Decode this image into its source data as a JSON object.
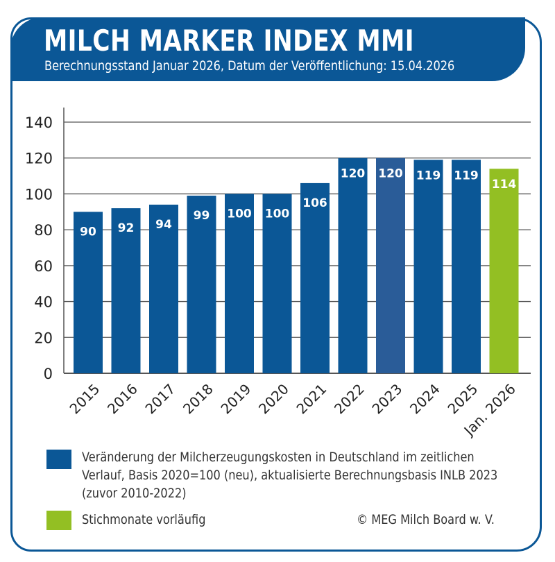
{
  "header": {
    "title": "MILCH MARKER INDEX MMI",
    "subtitle": "Berechnungsstand Januar 2026, Datum der Veröffentlichung: 15.04.2026"
  },
  "chart_data": {
    "type": "bar",
    "title": "MILCH MARKER INDEX MMI",
    "categories": [
      "2015",
      "2016",
      "2017",
      "2018",
      "2019",
      "2020",
      "2021",
      "2022",
      "2023",
      "2024",
      "2025",
      "Jan. 2026"
    ],
    "values": [
      90,
      92,
      94,
      99,
      100,
      100,
      106,
      120,
      120,
      119,
      119,
      114
    ],
    "data_labels": [
      "90",
      "92",
      "94",
      "99",
      "100",
      "100",
      "106",
      "120",
      "120",
      "119",
      "119",
      "114"
    ],
    "series_type": [
      "final",
      "final",
      "final",
      "final",
      "final",
      "final",
      "final",
      "final",
      "final-highlight",
      "final",
      "final",
      "provisional"
    ],
    "ylim": [
      0,
      140
    ],
    "yticks": [
      "0",
      "20",
      "40",
      "60",
      "80",
      "100",
      "120",
      "140"
    ],
    "ytick_values": [
      0,
      20,
      40,
      60,
      80,
      100,
      120,
      140
    ],
    "xlabel": "",
    "ylabel": "",
    "grid": true,
    "colors": {
      "final": "#0b5796",
      "final-highlight": "#2a5c98",
      "provisional": "#93bf23"
    }
  },
  "legend": {
    "items": [
      {
        "lines": [
          "Veränderung der Milcherzeugungskosten in Deutschland im zeitlichen",
          "Verlauf, Basis 2020=100 (neu), aktualisierte Berechnungsbasis INLB 2023",
          "(zuvor 2010-2022)"
        ],
        "color": "#0b5796"
      },
      {
        "lines": [
          "Stichmonate vorläufig"
        ],
        "color": "#93bf23"
      }
    ],
    "copyright": "© MEG Milch Board w. V."
  }
}
